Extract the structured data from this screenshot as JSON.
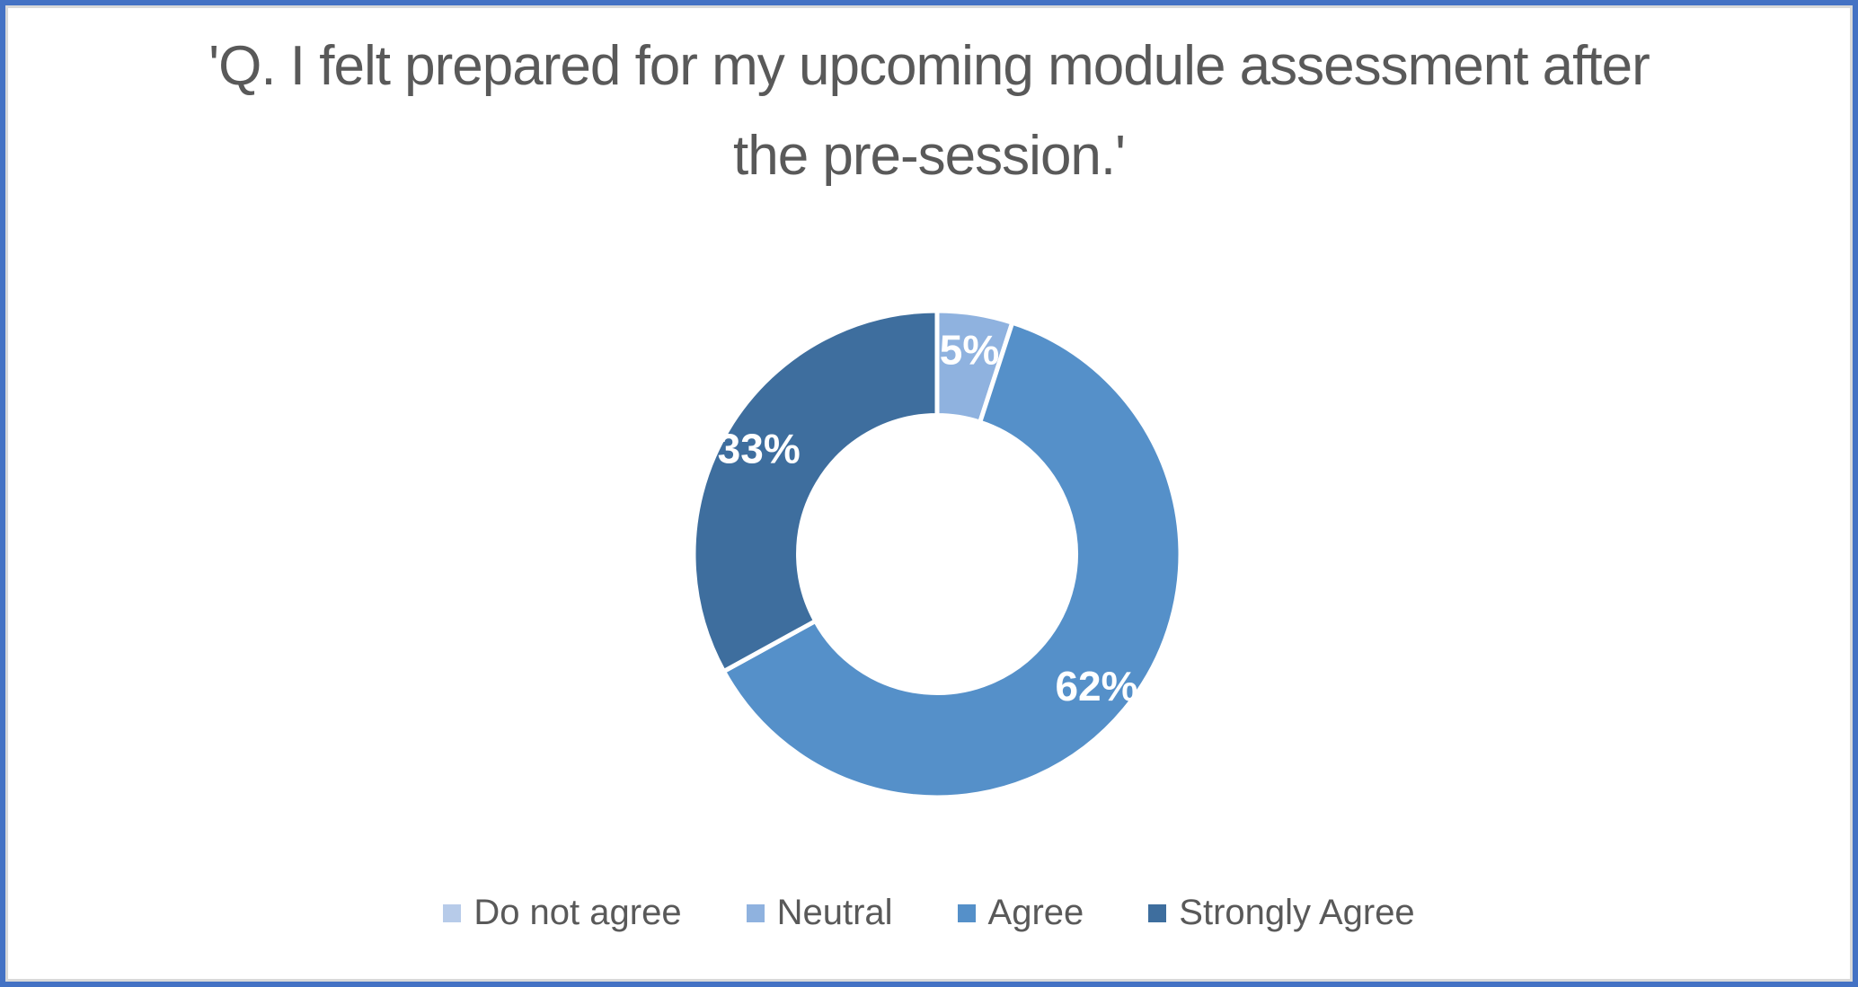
{
  "frame": {
    "outer_border_color": "#4472C4",
    "inner_border_color": "#D9D9D9",
    "background_color": "#FFFFFF"
  },
  "chart_data": {
    "type": "pie",
    "subtype": "doughnut",
    "title": "'Q. I felt prepared for my upcoming module assessment after the pre-session.'",
    "title_color": "#595959",
    "categories": [
      "Do not agree",
      "Neutral",
      "Agree",
      "Strongly Agree"
    ],
    "values": [
      0,
      5,
      62,
      33
    ],
    "value_unit": "%",
    "data_labels": [
      "",
      "5%",
      "62%",
      "33%"
    ],
    "data_label_color": "#FFFFFF",
    "slice_colors": [
      "#B7CBE9",
      "#8FB2DF",
      "#5590C9",
      "#3E6E9E"
    ],
    "separator_color": "#FFFFFF",
    "start_angle_deg": 0,
    "direction": "clockwise",
    "hole_ratio": 0.57,
    "legend_position": "bottom",
    "legend_text_color": "#595959"
  }
}
